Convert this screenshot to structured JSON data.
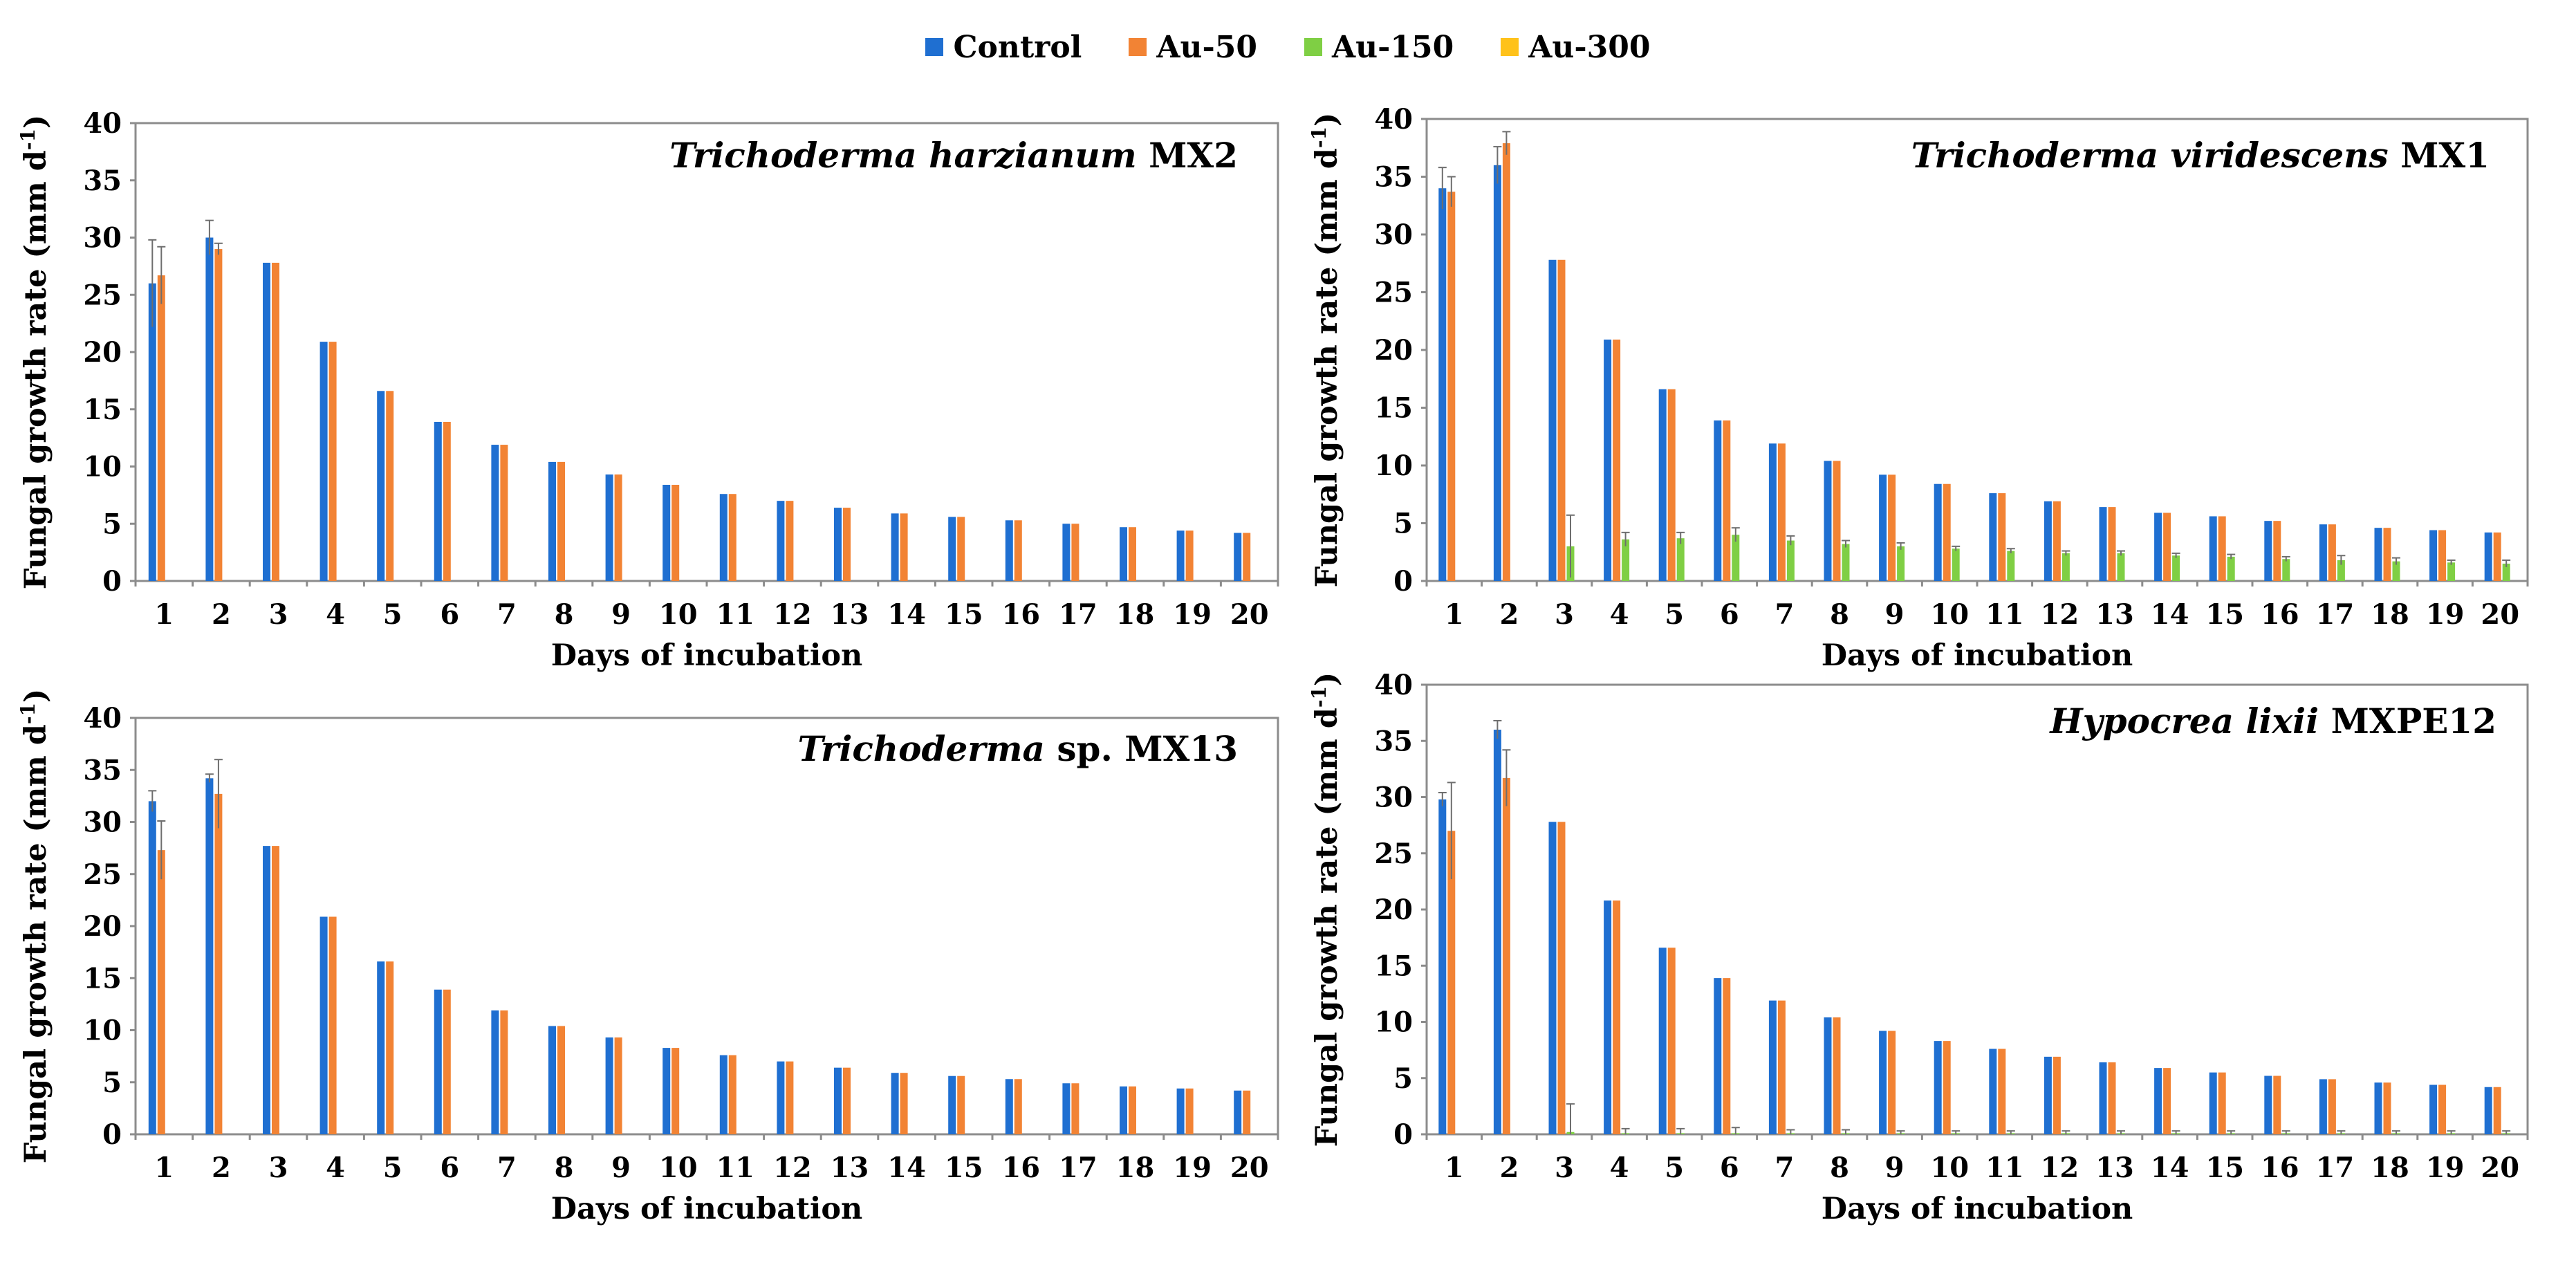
{
  "legend": [
    {
      "label": "Control",
      "color": "#1f6fd1"
    },
    {
      "label": "Au-50",
      "color": "#f28334"
    },
    {
      "label": "Au-150",
      "color": "#7fcf44"
    },
    {
      "label": "Au-300",
      "color": "#ffc21a"
    }
  ],
  "chart_data": [
    {
      "type": "bar",
      "title_italic": "Trichoderma harzianum",
      "title_rest": " MX2",
      "xlabel": "Days of incubation",
      "ylabel": "Fungal growth rate (mm d",
      "ylabel_sup": "-1",
      "ylabel_close": ")",
      "ylim": [
        0,
        40
      ],
      "yticks": [
        "0",
        "5",
        "10",
        "15",
        "20",
        "25",
        "30",
        "35",
        "40"
      ],
      "categories": [
        "1",
        "2",
        "3",
        "4",
        "5",
        "6",
        "7",
        "8",
        "9",
        "10",
        "11",
        "12",
        "13",
        "14",
        "15",
        "16",
        "17",
        "18",
        "19",
        "20"
      ],
      "series": [
        {
          "name": "Control",
          "values": [
            26,
            30,
            27.8,
            20.9,
            16.6,
            13.9,
            11.9,
            10.4,
            9.3,
            8.4,
            7.6,
            7.0,
            6.4,
            5.9,
            5.6,
            5.3,
            5.0,
            4.7,
            4.4,
            4.2
          ]
        },
        {
          "name": "Au-50",
          "values": [
            26.7,
            29,
            27.8,
            20.9,
            16.6,
            13.9,
            11.9,
            10.4,
            9.3,
            8.4,
            7.6,
            7.0,
            6.4,
            5.9,
            5.6,
            5.3,
            5.0,
            4.7,
            4.4,
            4.2
          ]
        },
        {
          "name": "Au-150",
          "values": [
            0,
            0,
            0,
            0,
            0,
            0,
            0,
            0,
            0,
            0,
            0,
            0,
            0,
            0,
            0,
            0,
            0,
            0,
            0,
            0
          ]
        },
        {
          "name": "Au-300",
          "values": [
            0,
            0,
            0,
            0,
            0,
            0,
            0,
            0,
            0,
            0,
            0,
            0,
            0,
            0,
            0,
            0,
            0,
            0,
            0,
            0
          ]
        }
      ],
      "errors": [
        {
          "name": "Control",
          "values": [
            3.8,
            1.5,
            0,
            0,
            0,
            0,
            0,
            0,
            0,
            0,
            0,
            0,
            0,
            0,
            0,
            0,
            0,
            0,
            0,
            0
          ]
        },
        {
          "name": "Au-50",
          "values": [
            2.5,
            0.5,
            0,
            0,
            0,
            0,
            0,
            0,
            0,
            0,
            0,
            0,
            0,
            0,
            0,
            0,
            0,
            0,
            0,
            0
          ]
        },
        {
          "name": "Au-150",
          "values": [
            0,
            0,
            0,
            0,
            0,
            0,
            0,
            0,
            0,
            0,
            0,
            0,
            0,
            0,
            0,
            0,
            0,
            0,
            0,
            0
          ]
        },
        {
          "name": "Au-300",
          "values": [
            0,
            0,
            0,
            0,
            0,
            0,
            0,
            0,
            0,
            0,
            0,
            0,
            0,
            0,
            0,
            0,
            0,
            0,
            0,
            0
          ]
        }
      ]
    },
    {
      "type": "bar",
      "title_italic": "Trichoderma viridescens",
      "title_rest": " MX1",
      "xlabel": "Days of incubation",
      "ylabel": "Fungal growth rate (mm d",
      "ylabel_sup": "-1",
      "ylabel_close": ")",
      "ylim": [
        0,
        40
      ],
      "yticks": [
        "0",
        "5",
        "10",
        "15",
        "20",
        "25",
        "30",
        "35",
        "40"
      ],
      "categories": [
        "1",
        "2",
        "3",
        "4",
        "5",
        "6",
        "7",
        "8",
        "9",
        "10",
        "11",
        "12",
        "13",
        "14",
        "15",
        "16",
        "17",
        "18",
        "19",
        "20"
      ],
      "series": [
        {
          "name": "Control",
          "values": [
            34,
            36,
            27.8,
            20.9,
            16.6,
            13.9,
            11.9,
            10.4,
            9.2,
            8.4,
            7.6,
            6.9,
            6.4,
            5.9,
            5.6,
            5.2,
            4.9,
            4.6,
            4.4,
            4.2
          ]
        },
        {
          "name": "Au-50",
          "values": [
            33.7,
            37.9,
            27.8,
            20.9,
            16.6,
            13.9,
            11.9,
            10.4,
            9.2,
            8.4,
            7.6,
            6.9,
            6.4,
            5.9,
            5.6,
            5.2,
            4.9,
            4.6,
            4.4,
            4.2
          ]
        },
        {
          "name": "Au-150",
          "values": [
            0,
            0,
            3.0,
            3.6,
            3.7,
            4.0,
            3.5,
            3.2,
            3.0,
            2.8,
            2.6,
            2.4,
            2.4,
            2.2,
            2.1,
            1.9,
            1.8,
            1.7,
            1.6,
            1.5
          ]
        },
        {
          "name": "Au-300",
          "values": [
            0,
            0,
            0,
            0,
            0,
            0,
            0,
            0,
            0,
            0,
            0,
            0,
            0,
            0,
            0,
            0,
            0,
            0,
            0,
            0
          ]
        }
      ],
      "errors": [
        {
          "name": "Control",
          "values": [
            1.8,
            1.6,
            0,
            0,
            0,
            0,
            0,
            0,
            0,
            0,
            0,
            0,
            0,
            0,
            0,
            0,
            0,
            0,
            0,
            0
          ]
        },
        {
          "name": "Au-50",
          "values": [
            1.3,
            1.0,
            0,
            0,
            0,
            0,
            0,
            0,
            0,
            0,
            0,
            0,
            0,
            0,
            0,
            0,
            0,
            0,
            0,
            0
          ]
        },
        {
          "name": "Au-150",
          "values": [
            0,
            0,
            2.7,
            0.6,
            0.5,
            0.6,
            0.4,
            0.3,
            0.3,
            0.2,
            0.2,
            0.2,
            0.2,
            0.2,
            0.2,
            0.2,
            0.4,
            0.3,
            0.2,
            0.3
          ]
        },
        {
          "name": "Au-300",
          "values": [
            0,
            0,
            0,
            0,
            0,
            0,
            0,
            0,
            0,
            0,
            0,
            0,
            0,
            0,
            0,
            0,
            0,
            0,
            0,
            0
          ]
        }
      ]
    },
    {
      "type": "bar",
      "title_italic": "Trichoderma",
      "title_rest": " sp. MX13",
      "xlabel": "Days of incubation",
      "ylabel": "Fungal growth rate (mm d",
      "ylabel_sup": "-1",
      "ylabel_close": ")",
      "ylim": [
        0,
        40
      ],
      "yticks": [
        "0",
        "5",
        "10",
        "15",
        "20",
        "25",
        "30",
        "35",
        "40"
      ],
      "categories": [
        "1",
        "2",
        "3",
        "4",
        "5",
        "6",
        "7",
        "8",
        "9",
        "10",
        "11",
        "12",
        "13",
        "14",
        "15",
        "16",
        "17",
        "18",
        "19",
        "20"
      ],
      "series": [
        {
          "name": "Control",
          "values": [
            32,
            34.2,
            27.7,
            20.9,
            16.6,
            13.9,
            11.9,
            10.4,
            9.3,
            8.3,
            7.6,
            7.0,
            6.4,
            5.9,
            5.6,
            5.3,
            4.9,
            4.6,
            4.4,
            4.2
          ]
        },
        {
          "name": "Au-50",
          "values": [
            27.3,
            32.7,
            27.7,
            20.9,
            16.6,
            13.9,
            11.9,
            10.4,
            9.3,
            8.3,
            7.6,
            7.0,
            6.4,
            5.9,
            5.6,
            5.3,
            4.9,
            4.6,
            4.4,
            4.2
          ]
        },
        {
          "name": "Au-150",
          "values": [
            0,
            0,
            0,
            0,
            0,
            0,
            0,
            0,
            0,
            0,
            0,
            0,
            0,
            0,
            0,
            0,
            0,
            0,
            0,
            0
          ]
        },
        {
          "name": "Au-300",
          "values": [
            0,
            0,
            0,
            0,
            0,
            0,
            0,
            0,
            0,
            0,
            0,
            0,
            0,
            0,
            0,
            0,
            0,
            0,
            0,
            0
          ]
        }
      ],
      "errors": [
        {
          "name": "Control",
          "values": [
            1.0,
            0.4,
            0,
            0,
            0,
            0,
            0,
            0,
            0,
            0,
            0,
            0,
            0,
            0,
            0,
            0,
            0,
            0,
            0,
            0
          ]
        },
        {
          "name": "Au-50",
          "values": [
            2.8,
            3.3,
            0,
            0,
            0,
            0,
            0,
            0,
            0,
            0,
            0,
            0,
            0,
            0,
            0,
            0,
            0,
            0,
            0,
            0
          ]
        },
        {
          "name": "Au-150",
          "values": [
            0,
            0,
            0,
            0,
            0,
            0,
            0,
            0,
            0,
            0,
            0,
            0,
            0,
            0,
            0,
            0,
            0,
            0,
            0,
            0
          ]
        },
        {
          "name": "Au-300",
          "values": [
            0,
            0,
            0,
            0,
            0,
            0,
            0,
            0,
            0,
            0,
            0,
            0,
            0,
            0,
            0,
            0,
            0,
            0,
            0,
            0
          ]
        }
      ]
    },
    {
      "type": "bar",
      "title_italic": "Hypocrea lixii",
      "title_rest": " MXPE12",
      "xlabel": "Days of incubation",
      "ylabel": "Fungal growth rate (mm d",
      "ylabel_sup": "-1",
      "ylabel_close": ")",
      "ylim": [
        0,
        40
      ],
      "yticks": [
        "0",
        "5",
        "10",
        "15",
        "20",
        "25",
        "30",
        "35",
        "40"
      ],
      "categories": [
        "1",
        "2",
        "3",
        "4",
        "5",
        "6",
        "7",
        "8",
        "9",
        "10",
        "11",
        "12",
        "13",
        "14",
        "15",
        "16",
        "17",
        "18",
        "19",
        "20"
      ],
      "series": [
        {
          "name": "Control",
          "values": [
            29.8,
            36,
            27.8,
            20.8,
            16.6,
            13.9,
            11.9,
            10.4,
            9.2,
            8.3,
            7.6,
            6.9,
            6.4,
            5.9,
            5.5,
            5.2,
            4.9,
            4.6,
            4.4,
            4.2
          ]
        },
        {
          "name": "Au-50",
          "values": [
            27,
            31.7,
            27.8,
            20.8,
            16.6,
            13.9,
            11.9,
            10.4,
            9.2,
            8.3,
            7.6,
            6.9,
            6.4,
            5.9,
            5.5,
            5.2,
            4.9,
            4.6,
            4.4,
            4.2
          ]
        },
        {
          "name": "Au-150",
          "values": [
            0,
            0,
            0.2,
            0.1,
            0.1,
            0.1,
            0.1,
            0.1,
            0.1,
            0.1,
            0.1,
            0.1,
            0.1,
            0.1,
            0.1,
            0.1,
            0.1,
            0.1,
            0.1,
            0.1
          ]
        },
        {
          "name": "Au-300",
          "values": [
            0,
            0,
            0,
            0,
            0,
            0,
            0,
            0,
            0,
            0,
            0,
            0,
            0,
            0,
            0,
            0,
            0,
            0,
            0,
            0
          ]
        }
      ],
      "errors": [
        {
          "name": "Control",
          "values": [
            0.6,
            0.8,
            0,
            0,
            0,
            0,
            0,
            0,
            0,
            0,
            0,
            0,
            0,
            0,
            0,
            0,
            0,
            0,
            0,
            0
          ]
        },
        {
          "name": "Au-50",
          "values": [
            4.3,
            2.5,
            0,
            0,
            0,
            0,
            0,
            0,
            0,
            0,
            0,
            0,
            0,
            0,
            0,
            0,
            0,
            0,
            0,
            0
          ]
        },
        {
          "name": "Au-150",
          "values": [
            0,
            0,
            2.5,
            0.4,
            0.4,
            0.5,
            0.3,
            0.3,
            0.2,
            0.2,
            0.2,
            0.2,
            0.2,
            0.2,
            0.2,
            0.2,
            0.2,
            0.2,
            0.2,
            0.2
          ]
        },
        {
          "name": "Au-300",
          "values": [
            0,
            0,
            0,
            0,
            0,
            0,
            0,
            0,
            0,
            0,
            0,
            0,
            0,
            0,
            0,
            0,
            0,
            0,
            0,
            0
          ]
        }
      ]
    }
  ]
}
